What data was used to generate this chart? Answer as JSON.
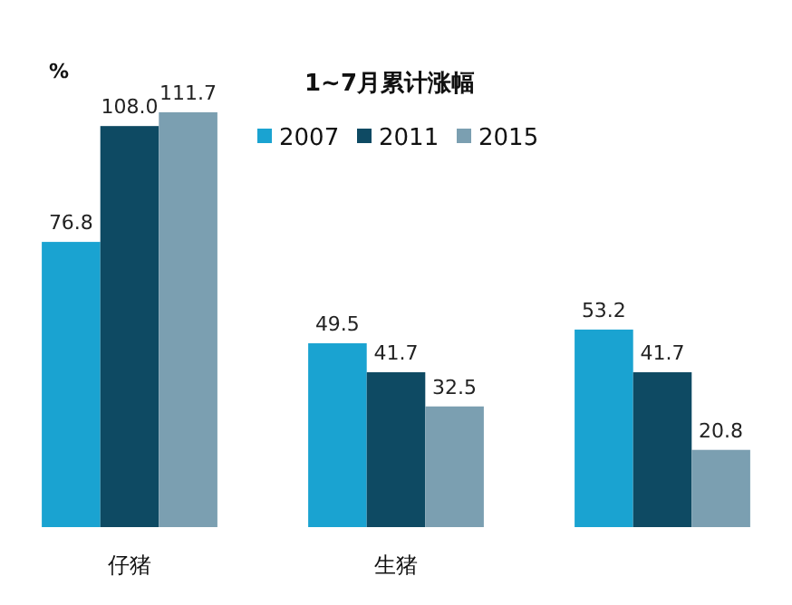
{
  "chart_data": {
    "type": "bar",
    "title": "1~7月累计涨幅",
    "ylabel": "%",
    "categories": [
      "仔猪",
      "生猪",
      null
    ],
    "series": [
      {
        "name": "2007",
        "color": "#1aa3d1",
        "values": [
          76.8,
          49.5,
          53.2
        ],
        "value_labels": [
          "76.8",
          "49.5",
          "53.2"
        ]
      },
      {
        "name": "2011",
        "color": "#0e4a63",
        "values": [
          108.0,
          41.7,
          41.7
        ],
        "value_labels": [
          "108.0",
          "41.7",
          "41.7"
        ]
      },
      {
        "name": "2015",
        "color": "#7b9fb1",
        "values": [
          111.7,
          32.5,
          20.8
        ],
        "value_labels": [
          "111.7",
          "32.5",
          "20.8"
        ]
      }
    ],
    "legend": "top right"
  }
}
